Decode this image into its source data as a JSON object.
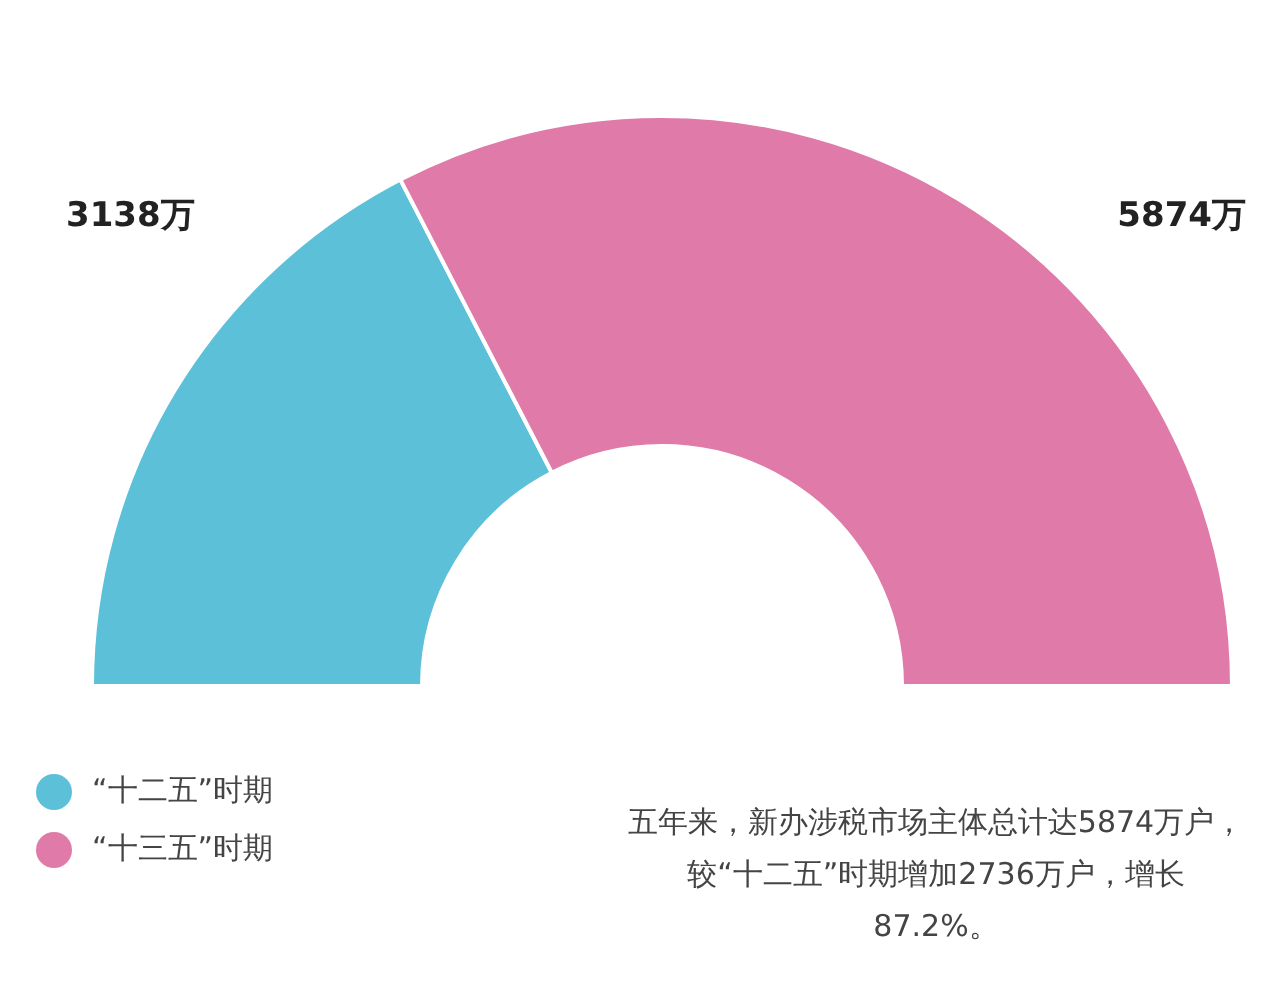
{
  "chart_data": {
    "type": "donut",
    "categories": [
      "“十二五”时期",
      "“十三五”时期"
    ],
    "values": [
      3138,
      5874
    ],
    "colors": [
      "#5bc0d8",
      "#e07aa8"
    ],
    "value_labels": [
      "3138万",
      "5874万"
    ],
    "legend": "bottom left",
    "annotations": [
      "五年来，新办涉税市场主体总计达5874万户，较“十二五”时期增加2736万户，增长87.2%。"
    ]
  }
}
